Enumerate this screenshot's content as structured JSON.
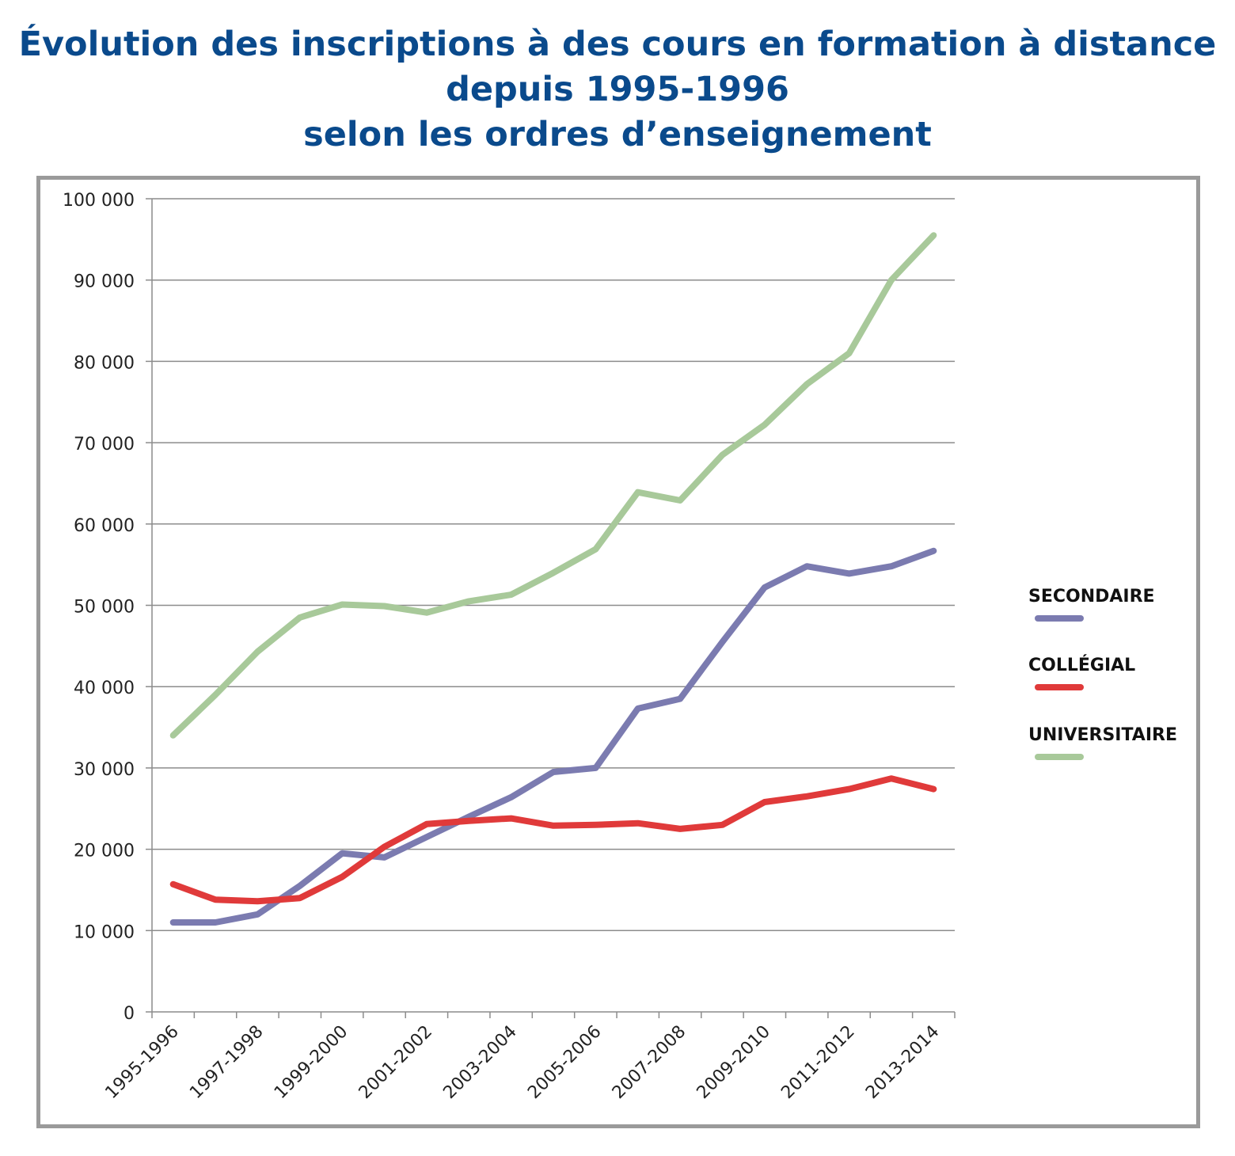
{
  "title_lines": [
    "Évolution des inscriptions à des cours en formation à distance",
    "depuis 1995-1996",
    "selon les ordres d’enseignement"
  ],
  "chart_data": {
    "type": "line",
    "title": "Évolution des inscriptions à des cours en formation à distance depuis 1995-1996 selon les ordres d’enseignement",
    "x": [
      "1995-1996",
      "1996-1997",
      "1997-1998",
      "1998-1999",
      "1999-2000",
      "2000-2001",
      "2001-2002",
      "2002-2003",
      "2003-2004",
      "2004-2005",
      "2005-2006",
      "2006-2007",
      "2007-2008",
      "2008-2009",
      "2009-2010",
      "2010-2011",
      "2011-2012",
      "2012-2013",
      "2013-2014"
    ],
    "x_tick_labels": [
      "1995-1996",
      "1997-1998",
      "1999-2000",
      "2001-2002",
      "2003-2004",
      "2005-2006",
      "2007-2008",
      "2009-2010",
      "2011-2012",
      "2013-2014"
    ],
    "y_tick_labels": [
      "0",
      "10 000",
      "20 000",
      "30 000",
      "40 000",
      "50 000",
      "60 000",
      "70 000",
      "80 000",
      "90 000",
      "100 000"
    ],
    "ylim": [
      0,
      100000
    ],
    "grid": true,
    "legend_position": "right",
    "series": [
      {
        "name": "SECONDAIRE",
        "color": "#7b7bb0",
        "values": [
          11000,
          11000,
          12000,
          15500,
          19500,
          19000,
          21500,
          24000,
          26400,
          29500,
          30000,
          37300,
          38500,
          45500,
          52200,
          54800,
          53900,
          54800,
          56700
        ]
      },
      {
        "name": "COLLÉGIAL",
        "color": "#e03a3a",
        "values": [
          15700,
          13800,
          13600,
          14000,
          16600,
          20300,
          23100,
          23500,
          23800,
          22900,
          23000,
          23200,
          22500,
          23000,
          25800,
          26500,
          27400,
          28700,
          27400
        ]
      },
      {
        "name": "UNIVERSITAIRE",
        "color": "#a8c99a",
        "values": [
          34000,
          39000,
          44300,
          48500,
          50100,
          49900,
          49100,
          50500,
          51300,
          54000,
          56900,
          63900,
          62900,
          68500,
          72200,
          77200,
          81000,
          90000,
          95500
        ]
      }
    ]
  }
}
